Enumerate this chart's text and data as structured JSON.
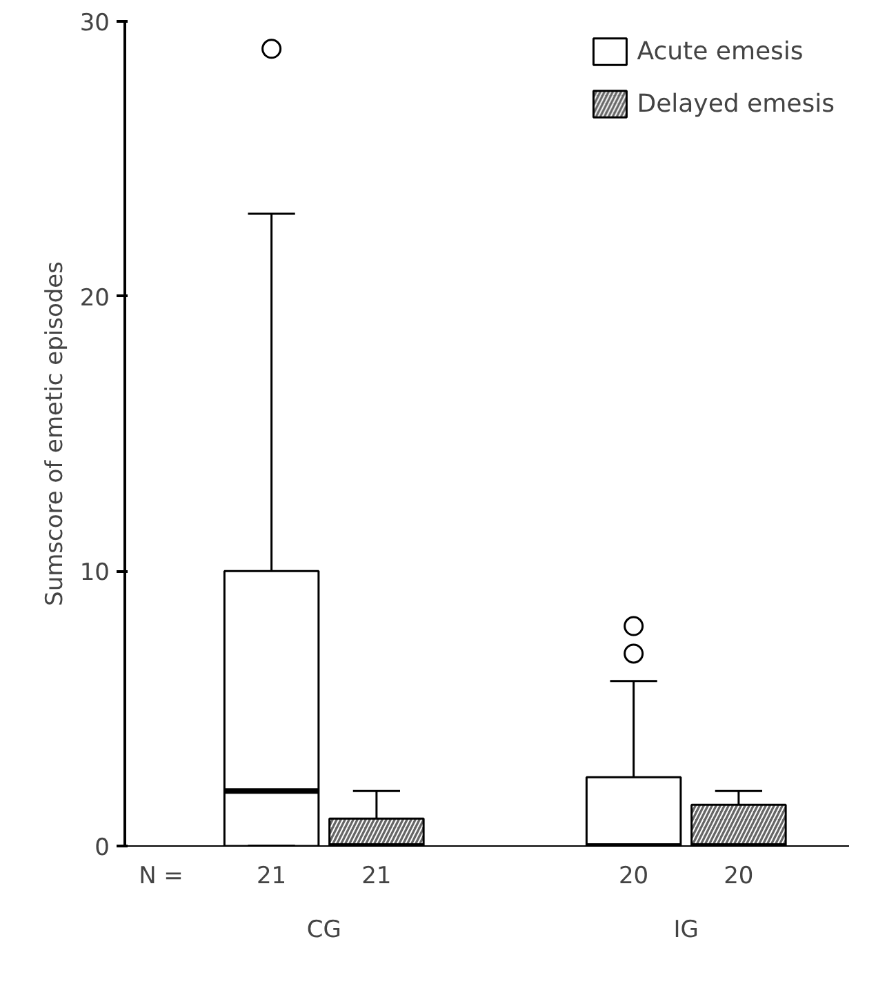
{
  "chart_data": {
    "type": "box",
    "ylabel": "Sumscore of emetic episodes",
    "categories": [
      "CG",
      "IG"
    ],
    "series": [
      {
        "name": "Acute emesis",
        "color": "#ffffff",
        "boxes": [
          {
            "low": 0,
            "q1": 0,
            "median": 2,
            "q3": 10,
            "high": 23,
            "outliers": [
              29
            ]
          },
          {
            "low": 0,
            "q1": 0,
            "median": 0,
            "q3": 2.5,
            "high": 6,
            "outliers": [
              7,
              8
            ]
          }
        ]
      },
      {
        "name": "Delayed emesis",
        "color": "#666666",
        "boxes": [
          {
            "low": 0,
            "q1": 0,
            "median": 0,
            "q3": 1,
            "high": 2
          },
          {
            "low": 0,
            "q1": 0,
            "median": 0,
            "q3": 1.5,
            "high": 2
          }
        ]
      }
    ],
    "ylim": [
      0,
      30
    ],
    "yticks": [
      0,
      10,
      20,
      30
    ],
    "grid": false,
    "legend": "top right",
    "annotations": [
      "N =",
      "21",
      "21",
      "20",
      "20"
    ]
  }
}
